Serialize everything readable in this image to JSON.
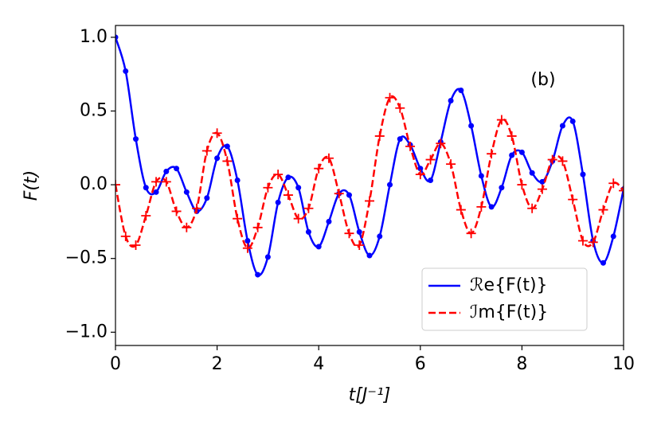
{
  "chart_data": {
    "type": "line",
    "annotation": "(b)",
    "x_label": "t[J⁻¹]",
    "y_label": "F(t)",
    "x": [
      0,
      0.2,
      0.4,
      0.6,
      0.8,
      1.0,
      1.2,
      1.4,
      1.6,
      1.8,
      2.0,
      2.2,
      2.4,
      2.6,
      2.8,
      3.0,
      3.2,
      3.4,
      3.6,
      3.8,
      4.0,
      4.2,
      4.4,
      4.6,
      4.8,
      5.0,
      5.2,
      5.4,
      5.6,
      5.8,
      6.0,
      6.2,
      6.4,
      6.6,
      6.8,
      7.0,
      7.2,
      7.4,
      7.6,
      7.8,
      8.0,
      8.2,
      8.4,
      8.6,
      8.8,
      9.0,
      9.2,
      9.4,
      9.6,
      9.8,
      10
    ],
    "series": [
      {
        "name": "ℛe{F(t)}",
        "color": "#0000ff",
        "style": "solid",
        "marker": "circle",
        "values": [
          1.0,
          0.77,
          0.31,
          -0.02,
          -0.05,
          0.09,
          0.11,
          -0.05,
          -0.18,
          -0.09,
          0.18,
          0.26,
          0.03,
          -0.38,
          -0.61,
          -0.49,
          -0.12,
          0.05,
          -0.02,
          -0.32,
          -0.42,
          -0.25,
          -0.06,
          -0.07,
          -0.32,
          -0.48,
          -0.35,
          0.0,
          0.31,
          0.27,
          0.11,
          0.03,
          0.29,
          0.57,
          0.64,
          0.4,
          0.06,
          -0.15,
          -0.02,
          0.2,
          0.22,
          0.08,
          0.02,
          0.16,
          0.4,
          0.43,
          0.07,
          -0.38,
          -0.53,
          -0.35,
          -0.03
        ]
      },
      {
        "name": "ℐm{F(t)}",
        "color": "#ff0000",
        "style": "dashed",
        "marker": "plus",
        "values": [
          0.0,
          -0.35,
          -0.41,
          -0.21,
          0.02,
          0.02,
          -0.18,
          -0.29,
          -0.16,
          0.23,
          0.35,
          0.16,
          -0.23,
          -0.43,
          -0.29,
          -0.02,
          0.07,
          -0.07,
          -0.23,
          -0.16,
          0.11,
          0.18,
          -0.06,
          -0.33,
          -0.41,
          -0.11,
          0.33,
          0.59,
          0.52,
          0.26,
          0.07,
          0.17,
          0.28,
          0.14,
          -0.17,
          -0.33,
          -0.15,
          0.21,
          0.44,
          0.33,
          0.0,
          -0.16,
          -0.03,
          0.17,
          0.16,
          -0.1,
          -0.38,
          -0.39,
          -0.17,
          0.01,
          -0.04
        ]
      }
    ],
    "xlim": [
      0,
      10
    ],
    "xticks": [
      0,
      2,
      4,
      6,
      8,
      10
    ],
    "ylim": [
      -1.09,
      1.08
    ],
    "yticks": [
      {
        "value": -1.0,
        "label": "−1.0"
      },
      {
        "value": -0.5,
        "label": "−0.5"
      },
      {
        "value": 0.0,
        "label": "0.0"
      },
      0.5,
      {
        "value": 1.0,
        "label": "1.0"
      }
    ],
    "legend": "lower right",
    "grid": false
  }
}
